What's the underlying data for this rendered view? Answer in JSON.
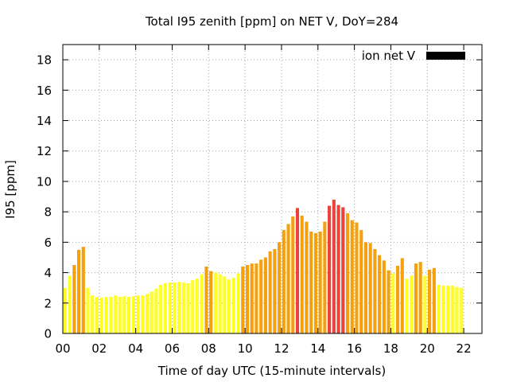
{
  "chart_data": {
    "type": "bar",
    "title": "Total I95 zenith [ppm] on NET V, DoY=284",
    "xlabel": "Time of day UTC (15-minute intervals)",
    "ylabel": "I95 [ppm]",
    "xlim": [
      0,
      23
    ],
    "ylim": [
      0,
      19
    ],
    "x_ticks": [
      "00",
      "02",
      "04",
      "06",
      "08",
      "10",
      "12",
      "14",
      "16",
      "18",
      "20",
      "22"
    ],
    "y_ticks": [
      "0",
      "2",
      "4",
      "6",
      "8",
      "10",
      "12",
      "14",
      "16",
      "18"
    ],
    "grid": true,
    "legend": {
      "label": "ion net V",
      "color": "#000000",
      "placement": "top-right"
    },
    "colors": {
      "low": "#ffff26",
      "medium": "#f5a00f",
      "high": "#e8443b"
    },
    "bar_interval_hours": 0.25,
    "values": [
      3.0,
      3.8,
      4.5,
      5.5,
      5.7,
      3.0,
      2.5,
      2.4,
      2.35,
      2.4,
      2.4,
      2.5,
      2.4,
      2.45,
      2.4,
      2.45,
      2.5,
      2.5,
      2.6,
      2.75,
      2.95,
      3.2,
      3.3,
      3.35,
      3.35,
      3.4,
      3.35,
      3.3,
      3.5,
      3.6,
      3.9,
      4.4,
      4.1,
      4.0,
      3.9,
      3.75,
      3.55,
      3.65,
      3.95,
      4.4,
      4.5,
      4.6,
      4.6,
      4.85,
      5.0,
      5.4,
      5.55,
      6.0,
      6.8,
      7.2,
      7.7,
      8.25,
      7.75,
      7.35,
      6.7,
      6.6,
      6.7,
      7.35,
      8.4,
      8.8,
      8.45,
      8.3,
      7.9,
      7.45,
      7.3,
      6.8,
      6.0,
      5.95,
      5.55,
      5.15,
      4.8,
      4.15,
      3.95,
      4.45,
      4.95,
      3.6,
      3.8,
      4.6,
      4.7,
      3.8,
      4.2,
      4.3,
      3.2,
      3.15,
      3.15,
      3.15,
      3.05,
      3.0
    ],
    "levels": [
      "low",
      "low",
      "medium",
      "medium",
      "medium",
      "low",
      "low",
      "low",
      "low",
      "low",
      "low",
      "low",
      "low",
      "low",
      "low",
      "low",
      "low",
      "low",
      "low",
      "low",
      "low",
      "low",
      "low",
      "low",
      "low",
      "low",
      "low",
      "low",
      "low",
      "low",
      "low",
      "medium",
      "medium",
      "low",
      "low",
      "low",
      "low",
      "low",
      "low",
      "medium",
      "medium",
      "medium",
      "medium",
      "medium",
      "medium",
      "medium",
      "medium",
      "medium",
      "medium",
      "medium",
      "medium",
      "high",
      "medium",
      "medium",
      "medium",
      "medium",
      "medium",
      "medium",
      "high",
      "high",
      "high",
      "high",
      "medium",
      "medium",
      "medium",
      "medium",
      "medium",
      "medium",
      "medium",
      "medium",
      "medium",
      "medium",
      "low",
      "medium",
      "medium",
      "low",
      "low",
      "medium",
      "medium",
      "low",
      "medium",
      "medium",
      "low",
      "low",
      "low",
      "low",
      "low",
      "low"
    ]
  }
}
